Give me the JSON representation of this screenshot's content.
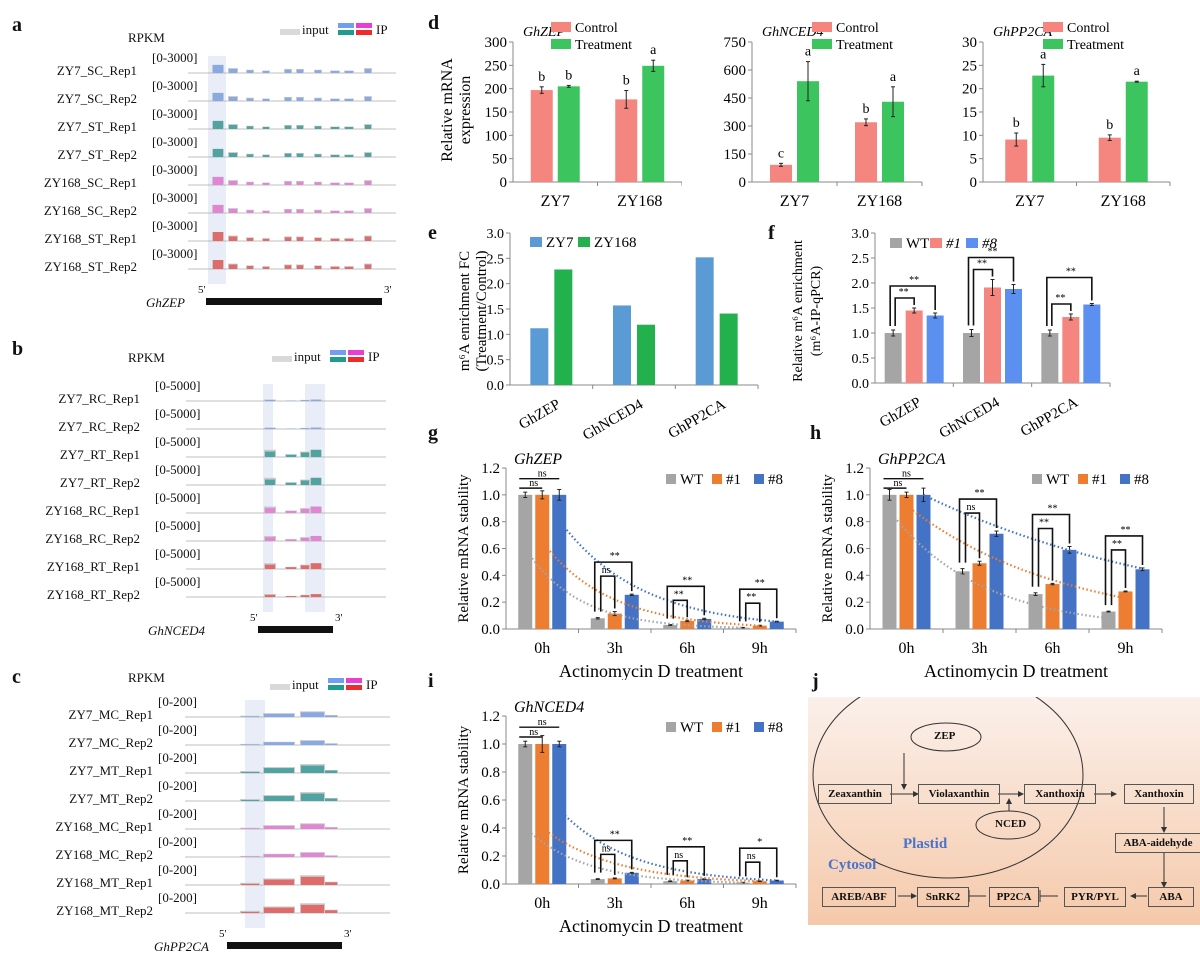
{
  "panels": {
    "a": {
      "letter": "a",
      "rpkm": "RPKM",
      "legend_input": "input",
      "legend_ip": "IP",
      "gene": "GhZEP",
      "five": "5'",
      "three": "3'",
      "tracks": [
        {
          "name": "ZY7_SC_Rep1",
          "range": "[0-3000]",
          "color": "#7da3e8"
        },
        {
          "name": "ZY7_SC_Rep2",
          "range": "[0-3000]",
          "color": "#7da3e8"
        },
        {
          "name": "ZY7_ST_Rep1",
          "range": "[0-3000]",
          "color": "#3a9e9a"
        },
        {
          "name": "ZY7_ST_Rep2",
          "range": "[0-3000]",
          "color": "#3a9e9a"
        },
        {
          "name": "ZY168_SC_Rep1",
          "range": "[0-3000]",
          "color": "#e47ad6"
        },
        {
          "name": "ZY168_SC_Rep2",
          "range": "[0-3000]",
          "color": "#e47ad6"
        },
        {
          "name": "ZY168_ST_Rep1",
          "range": "[0-3000]",
          "color": "#e35a5a"
        },
        {
          "name": "ZY168_ST_Rep2",
          "range": "[0-3000]",
          "color": "#e35a5a"
        }
      ]
    },
    "b": {
      "letter": "b",
      "rpkm": "RPKM",
      "legend_input": "input",
      "legend_ip": "IP",
      "gene": "GhNCED4",
      "five": "5'",
      "three": "3'",
      "tracks": [
        {
          "name": "ZY7_RC_Rep1",
          "range": "[0-5000]",
          "color": "#7da3e8"
        },
        {
          "name": "ZY7_RC_Rep2",
          "range": "[0-5000]",
          "color": "#7da3e8"
        },
        {
          "name": "ZY7_RT_Rep1",
          "range": "[0-5000]",
          "color": "#3a9e9a"
        },
        {
          "name": "ZY7_RT_Rep2",
          "range": "[0-5000]",
          "color": "#3a9e9a"
        },
        {
          "name": "ZY168_RC_Rep1",
          "range": "[0-5000]",
          "color": "#e47ad6"
        },
        {
          "name": "ZY168_RC_Rep2",
          "range": "[0-5000]",
          "color": "#e47ad6"
        },
        {
          "name": "ZY168_RT_Rep1",
          "range": "[0-5000]",
          "color": "#e35a5a"
        },
        {
          "name": "ZY168_RT_Rep2",
          "range": "[0-5000]",
          "color": "#e35a5a"
        }
      ]
    },
    "c": {
      "letter": "c",
      "rpkm": "RPKM",
      "legend_input": "input",
      "legend_ip": "IP",
      "gene": "GhPP2CA",
      "five": "5'",
      "three": "3'",
      "tracks": [
        {
          "name": "ZY7_MC_Rep1",
          "range": "[0-200]",
          "color": "#7da3e8"
        },
        {
          "name": "ZY7_MC_Rep2",
          "range": "[0-200]",
          "color": "#7da3e8"
        },
        {
          "name": "ZY7_MT_Rep1",
          "range": "[0-200]",
          "color": "#3a9e9a"
        },
        {
          "name": "ZY7_MT_Rep2",
          "range": "[0-200]",
          "color": "#3a9e9a"
        },
        {
          "name": "ZY168_MC_Rep1",
          "range": "[0-200]",
          "color": "#e47ad6"
        },
        {
          "name": "ZY168_MC_Rep2",
          "range": "[0-200]",
          "color": "#e47ad6"
        },
        {
          "name": "ZY168_MT_Rep1",
          "range": "[0-200]",
          "color": "#e35a5a"
        },
        {
          "name": "ZY168_MT_Rep2",
          "range": "[0-200]",
          "color": "#e35a5a"
        }
      ]
    },
    "j": {
      "letter": "j",
      "nodes": {
        "zep": "ZEP",
        "nced": "NCED",
        "zeaxanthin": "Zeaxanthin",
        "violaxanthin": "Violaxanthin",
        "xanthoxin1": "Xanthoxin",
        "xanthoxin2": "Xanthoxin",
        "aba_aldehyde": "ABA-aidehyde",
        "aba": "ABA",
        "pyr": "PYR/PYL",
        "pp2ca": "PP2CA",
        "snrk2": "SnRK2",
        "areb": "AREB/ABF"
      },
      "plastid": "Plastid",
      "cytosol": "Cytosol",
      "label_color": "#4a74c9"
    }
  },
  "colors": {
    "control": "#f4867f",
    "treatment": "#3cc55f",
    "zy7": "#5b9bd5",
    "zy168": "#22b14c",
    "wt": "#a5a5a5",
    "l1_f": "#f4867f",
    "l8_f": "#5b8ff0",
    "l1": "#ed7d31",
    "l8": "#4472c4"
  },
  "chart_data": [
    {
      "id": "d1",
      "panel": "d",
      "type": "bar",
      "title": "GhZEP",
      "ylabel": "Relative mRNA expression",
      "ylim": [
        0,
        300
      ],
      "yticks": [
        0,
        50,
        100,
        150,
        200,
        250,
        300
      ],
      "categories": [
        "ZY7",
        "ZY168"
      ],
      "series": [
        {
          "name": "Control",
          "values": [
            197,
            177
          ],
          "errors": [
            7,
            19
          ],
          "letters": [
            "b",
            "b"
          ]
        },
        {
          "name": "Treatment",
          "values": [
            205,
            249
          ],
          "errors": [
            2,
            12
          ],
          "letters": [
            "b",
            "a"
          ]
        }
      ],
      "legend": "top-right"
    },
    {
      "id": "d2",
      "panel": "d",
      "type": "bar",
      "title": "GhNCED4",
      "ylim": [
        0,
        750
      ],
      "yticks": [
        0,
        150,
        300,
        450,
        600,
        750
      ],
      "categories": [
        "ZY7",
        "ZY168"
      ],
      "series": [
        {
          "name": "Control",
          "values": [
            92,
            320
          ],
          "errors": [
            8,
            18
          ],
          "letters": [
            "c",
            "b"
          ]
        },
        {
          "name": "Treatment",
          "values": [
            540,
            430
          ],
          "errors": [
            105,
            80
          ],
          "letters": [
            "a",
            "a"
          ]
        }
      ],
      "legend": "top-right"
    },
    {
      "id": "d3",
      "panel": "d",
      "type": "bar",
      "title": "GhPP2CA",
      "ylim": [
        0,
        30
      ],
      "yticks": [
        0,
        5,
        10,
        15,
        20,
        25,
        30
      ],
      "categories": [
        "ZY7",
        "ZY168"
      ],
      "series": [
        {
          "name": "Control",
          "values": [
            9.1,
            9.5
          ],
          "errors": [
            1.4,
            0.6
          ],
          "letters": [
            "b",
            "b"
          ]
        },
        {
          "name": "Treatment",
          "values": [
            22.8,
            21.5
          ],
          "errors": [
            2.4,
            0.1
          ],
          "letters": [
            "a",
            "a"
          ]
        }
      ],
      "legend": "top-right"
    },
    {
      "id": "e",
      "panel": "e",
      "type": "bar",
      "ylabel": "m6A enrichment FC (Treatment/Control)",
      "ylim": [
        0,
        3
      ],
      "yticks": [
        "0.0",
        "0.5",
        "1.0",
        "1.5",
        "2.0",
        "2.5",
        "3.0"
      ],
      "categories": [
        "GhZEP",
        "GhNCED4",
        "GhPP2CA"
      ],
      "series": [
        {
          "name": "ZY7",
          "values": [
            1.12,
            1.57,
            2.52
          ]
        },
        {
          "name": "ZY168",
          "values": [
            2.28,
            1.19,
            1.41
          ]
        }
      ],
      "legend": "top"
    },
    {
      "id": "f",
      "panel": "f",
      "type": "bar",
      "ylabel": "Relative m6A enrichment (m6A-IP-qPCR)",
      "ylim": [
        0,
        3
      ],
      "yticks": [
        "0.0",
        "0.5",
        "1.0",
        "1.5",
        "2.0",
        "2.5",
        "3.0"
      ],
      "categories": [
        "GhZEP",
        "GhNCED4",
        "GhPP2CA"
      ],
      "series": [
        {
          "name": "WT",
          "values": [
            1.0,
            1.0,
            1.0
          ],
          "errors": [
            0.06,
            0.07,
            0.06
          ]
        },
        {
          "name": "#1",
          "values": [
            1.45,
            1.91,
            1.32
          ],
          "errors": [
            0.05,
            0.16,
            0.06
          ]
        },
        {
          "name": "#8",
          "values": [
            1.35,
            1.88,
            1.57
          ],
          "errors": [
            0.05,
            0.09,
            0.02
          ]
        }
      ],
      "significance": [
        "**",
        "**",
        "**",
        "**",
        "**",
        "**"
      ],
      "legend": "top"
    },
    {
      "id": "g",
      "panel": "g",
      "type": "bar",
      "title": "GhZEP",
      "xlabel": "Actinomycin D treatment",
      "ylabel": "Relative mRNA stability",
      "ylim": [
        0,
        1.2
      ],
      "yticks": [
        "0.0",
        "0.2",
        "0.4",
        "0.6",
        "0.8",
        "1.0",
        "1.2"
      ],
      "categories": [
        "0h",
        "3h",
        "6h",
        "9h"
      ],
      "series": [
        {
          "name": "WT",
          "values": [
            1.0,
            0.08,
            0.03,
            0.01
          ],
          "errors": [
            0.02,
            0.005,
            0.003,
            0.002
          ]
        },
        {
          "name": "#1",
          "values": [
            1.0,
            0.115,
            0.06,
            0.025
          ],
          "errors": [
            0.03,
            0.015,
            0.005,
            0.003
          ]
        },
        {
          "name": "#8",
          "values": [
            1.0,
            0.255,
            0.075,
            0.055
          ],
          "errors": [
            0.04,
            0.005,
            0.005,
            0.003
          ]
        }
      ],
      "trend_start": [
        0.6,
        0.65,
        0.81
      ],
      "significance": [
        [
          "ns",
          "ns"
        ],
        [
          "ns",
          "**"
        ],
        [
          "**",
          "**"
        ],
        [
          "**",
          "**"
        ]
      ],
      "legend": "top-right"
    },
    {
      "id": "h",
      "panel": "h",
      "type": "bar",
      "title": "GhPP2CA",
      "xlabel": "Actinomycin D treatment",
      "ylabel": "Relative mRNA stability",
      "ylim": [
        0,
        1.2
      ],
      "yticks": [
        "0.0",
        "0.2",
        "0.4",
        "0.6",
        "0.8",
        "1.0",
        "1.2"
      ],
      "categories": [
        "0h",
        "3h",
        "6h",
        "9h"
      ],
      "series": [
        {
          "name": "WT",
          "values": [
            1.0,
            0.43,
            0.26,
            0.13
          ],
          "errors": [
            0.04,
            0.02,
            0.01,
            0.003
          ]
        },
        {
          "name": "#1",
          "values": [
            1.0,
            0.49,
            0.335,
            0.28
          ],
          "errors": [
            0.02,
            0.015,
            0.005,
            0.003
          ]
        },
        {
          "name": "#8",
          "values": [
            1.0,
            0.71,
            0.59,
            0.445
          ],
          "errors": [
            0.05,
            0.02,
            0.025,
            0.01
          ]
        }
      ],
      "trend_start": [
        0.88,
        0.92,
        1.0
      ],
      "trend_end": [
        0.08,
        0.23,
        0.45
      ],
      "significance": [
        [
          "ns",
          "ns"
        ],
        [
          "ns",
          "**"
        ],
        [
          "**",
          "**"
        ],
        [
          "**",
          "**"
        ]
      ],
      "legend": "top-right"
    },
    {
      "id": "i",
      "panel": "i",
      "type": "bar",
      "title": "GhNCED4",
      "xlabel": "Actinomycin D treatment",
      "ylabel": "Relative mRNA stability",
      "ylim": [
        0,
        1.2
      ],
      "yticks": [
        "0.0",
        "0.2",
        "0.4",
        "0.6",
        "0.8",
        "1.0",
        "1.2"
      ],
      "categories": [
        "0h",
        "3h",
        "6h",
        "9h"
      ],
      "series": [
        {
          "name": "WT",
          "values": [
            1.0,
            0.035,
            0.02,
            0.01
          ],
          "errors": [
            0.02,
            0.003,
            0.002,
            0.002
          ]
        },
        {
          "name": "#1",
          "values": [
            1.0,
            0.04,
            0.025,
            0.02
          ],
          "errors": [
            0.06,
            0.003,
            0.002,
            0.002
          ]
        },
        {
          "name": "#8",
          "values": [
            1.0,
            0.08,
            0.035,
            0.025
          ],
          "errors": [
            0.02,
            0.003,
            0.002,
            0.002
          ]
        }
      ],
      "trend_start": [
        0.4,
        0.4,
        0.53
      ],
      "significance": [
        [
          "ns",
          "ns"
        ],
        [
          "ns",
          "**"
        ],
        [
          "ns",
          "**"
        ],
        [
          "ns",
          "*"
        ]
      ],
      "legend": "top-right"
    }
  ]
}
